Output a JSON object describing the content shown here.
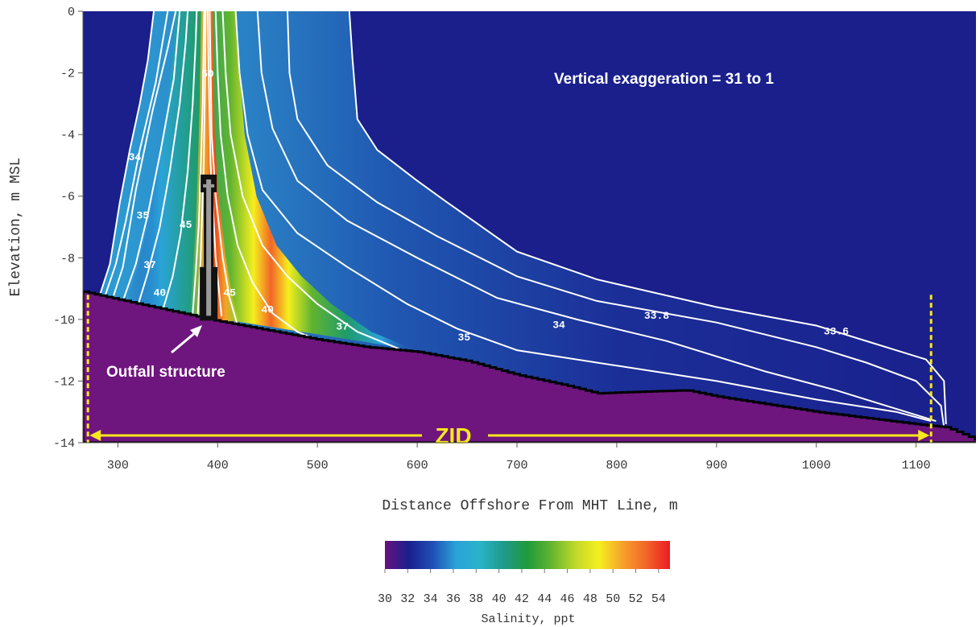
{
  "chart_data": {
    "type": "heatmap",
    "xlabel": "Distance Offshore From MHT Line, m",
    "ylabel": "Elevation, m MSL",
    "xlim": [
      265,
      1160
    ],
    "ylim": [
      -14,
      0
    ],
    "x_ticks": [
      300,
      400,
      500,
      600,
      700,
      800,
      900,
      1000,
      1100
    ],
    "y_ticks": [
      0,
      -2,
      -4,
      -6,
      -8,
      -10,
      -12,
      -14
    ],
    "grid": false,
    "colors": {
      "background": "#1a1f8c",
      "seabed": "#6f157e",
      "boundary": "#f6e81d",
      "contour": "#ffffff"
    },
    "annotations": {
      "exaggeration": "Vertical exaggeration = 31 to 1",
      "outfall": "Outfall structure",
      "zid": "ZID"
    },
    "zid_range": [
      270,
      1115
    ],
    "outfall_x": 391,
    "outfall_top": -5.3,
    "seabed_profile": [
      [
        265,
        -9.1
      ],
      [
        300,
        -9.35
      ],
      [
        350,
        -9.7
      ],
      [
        400,
        -10.05
      ],
      [
        450,
        -10.35
      ],
      [
        500,
        -10.65
      ],
      [
        550,
        -10.9
      ],
      [
        600,
        -11.05
      ],
      [
        650,
        -11.35
      ],
      [
        700,
        -11.8
      ],
      [
        750,
        -12.15
      ],
      [
        780,
        -12.4
      ],
      [
        820,
        -12.35
      ],
      [
        870,
        -12.3
      ],
      [
        900,
        -12.5
      ],
      [
        950,
        -12.75
      ],
      [
        1000,
        -13.0
      ],
      [
        1050,
        -13.2
      ],
      [
        1100,
        -13.4
      ],
      [
        1130,
        -13.5
      ],
      [
        1160,
        -13.9
      ]
    ],
    "contours": [
      {
        "level": "33.6",
        "label_at": [
          1020,
          -10.35
        ],
        "points": [
          [
            282,
            -9.2
          ],
          [
            292,
            -8.2
          ],
          [
            302,
            -6.2
          ],
          [
            312,
            -4.5
          ],
          [
            322,
            -3.0
          ],
          [
            330,
            -1.6
          ],
          [
            336,
            0
          ]
        ]
      },
      {
        "level": "33.6",
        "points": [
          [
            532,
            0
          ],
          [
            535,
            -1.5
          ],
          [
            540,
            -3.5
          ],
          [
            560,
            -4.5
          ],
          [
            600,
            -5.5
          ],
          [
            630,
            -6.2
          ],
          [
            700,
            -7.8
          ],
          [
            780,
            -8.7
          ],
          [
            900,
            -9.6
          ],
          [
            1000,
            -10.2
          ],
          [
            1060,
            -10.8
          ],
          [
            1110,
            -11.3
          ],
          [
            1128,
            -12.0
          ],
          [
            1130,
            -13.4
          ]
        ]
      },
      {
        "level": "33.8",
        "label_at": [
          840,
          -9.85
        ],
        "points": [
          [
            287,
            -9.25
          ],
          [
            298,
            -8.2
          ],
          [
            308,
            -6.8
          ],
          [
            322,
            -4.5
          ],
          [
            338,
            -2.3
          ],
          [
            350,
            0
          ]
        ]
      },
      {
        "level": "33.8",
        "points": [
          [
            470,
            0
          ],
          [
            472,
            -2
          ],
          [
            480,
            -3.5
          ],
          [
            510,
            -5
          ],
          [
            560,
            -6.2
          ],
          [
            620,
            -7.3
          ],
          [
            700,
            -8.6
          ],
          [
            780,
            -9.4
          ],
          [
            900,
            -10.1
          ],
          [
            1000,
            -10.9
          ],
          [
            1050,
            -11.4
          ],
          [
            1100,
            -12.0
          ],
          [
            1125,
            -12.8
          ],
          [
            1128,
            -13.5
          ]
        ]
      },
      {
        "level": "34",
        "label_at": [
          317,
          -4.7
        ],
        "points": [
          [
            295,
            -9.3
          ],
          [
            305,
            -8.3
          ],
          [
            318,
            -5.8
          ],
          [
            335,
            -3.2
          ],
          [
            350,
            -1.2
          ],
          [
            358,
            0
          ]
        ]
      },
      {
        "level": "34",
        "label_at": [
          742,
          -10.15
        ],
        "points": [
          [
            440,
            0
          ],
          [
            444,
            -2
          ],
          [
            455,
            -3.8
          ],
          [
            480,
            -5.5
          ],
          [
            530,
            -6.8
          ],
          [
            600,
            -8.0
          ],
          [
            680,
            -9.3
          ],
          [
            760,
            -10.0
          ],
          [
            850,
            -10.7
          ],
          [
            950,
            -11.7
          ],
          [
            1020,
            -12.3
          ],
          [
            1080,
            -12.9
          ],
          [
            1120,
            -13.3
          ]
        ]
      },
      {
        "level": "35",
        "label_at": [
          325,
          -6.6
        ],
        "points": [
          [
            305,
            -9.4
          ],
          [
            318,
            -8.2
          ],
          [
            330,
            -6.6
          ],
          [
            343,
            -4.5
          ],
          [
            356,
            -2.2
          ],
          [
            362,
            0
          ]
        ]
      },
      {
        "level": "35",
        "label_at": [
          647,
          -10.55
        ],
        "points": [
          [
            418,
            0
          ],
          [
            422,
            -2
          ],
          [
            430,
            -4
          ],
          [
            445,
            -5.8
          ],
          [
            480,
            -7.2
          ],
          [
            530,
            -8.3
          ],
          [
            590,
            -9.5
          ],
          [
            640,
            -10.3
          ],
          [
            700,
            -11.0
          ],
          [
            800,
            -11.5
          ],
          [
            900,
            -12.0
          ],
          [
            1000,
            -12.6
          ],
          [
            1080,
            -13.0
          ],
          [
            1115,
            -13.3
          ]
        ]
      },
      {
        "level": "37",
        "label_at": [
          332,
          -8.2
        ],
        "points": [
          [
            320,
            -9.55
          ],
          [
            330,
            -8.5
          ],
          [
            342,
            -7.0
          ],
          [
            352,
            -5.2
          ],
          [
            362,
            -3.0
          ],
          [
            368,
            -1.0
          ],
          [
            370,
            0
          ]
        ]
      },
      {
        "level": "37",
        "label_at": [
          525,
          -10.2
        ],
        "points": [
          [
            405,
            0
          ],
          [
            408,
            -2
          ],
          [
            413,
            -4
          ],
          [
            425,
            -6
          ],
          [
            445,
            -7.6
          ],
          [
            470,
            -8.6
          ],
          [
            500,
            -9.5
          ],
          [
            540,
            -10.4
          ],
          [
            585,
            -11.0
          ]
        ]
      },
      {
        "level": "40",
        "label_at": [
          342,
          -9.1
        ],
        "points": [
          [
            345,
            -9.7
          ],
          [
            355,
            -8.6
          ],
          [
            363,
            -7.2
          ],
          [
            370,
            -5.2
          ],
          [
            375,
            -3.0
          ],
          [
            378,
            -1.0
          ],
          [
            379,
            0
          ]
        ]
      },
      {
        "level": "40",
        "label_at": [
          450,
          -9.65
        ],
        "points": [
          [
            398,
            0
          ],
          [
            400,
            -2
          ],
          [
            403,
            -4
          ],
          [
            410,
            -6
          ],
          [
            420,
            -7.6
          ],
          [
            435,
            -8.8
          ],
          [
            455,
            -9.8
          ],
          [
            480,
            -10.4
          ],
          [
            510,
            -10.8
          ]
        ]
      },
      {
        "level": "45",
        "label_at": [
          368,
          -6.9
        ],
        "points": [
          [
            375,
            -9.8
          ],
          [
            378,
            -8.5
          ],
          [
            381,
            -7
          ],
          [
            383,
            -5.2
          ],
          [
            385,
            -3.0
          ],
          [
            386,
            -1.0
          ],
          [
            386.5,
            0
          ]
        ]
      },
      {
        "level": "45",
        "label_at": [
          412,
          -9.1
        ],
        "points": [
          [
            392,
            0
          ],
          [
            393,
            -2
          ],
          [
            394,
            -4
          ],
          [
            398,
            -6
          ],
          [
            405,
            -8
          ],
          [
            412,
            -9.3
          ],
          [
            420,
            -10.2
          ]
        ]
      },
      {
        "level": "50",
        "label_at": [
          390,
          -2.0
        ],
        "points": [
          [
            380,
            -9.9
          ],
          [
            383,
            -8
          ],
          [
            386,
            -5
          ],
          [
            387.5,
            -2
          ],
          [
            388,
            0
          ]
        ]
      },
      {
        "level": "50",
        "points": [
          [
            390,
            0
          ],
          [
            391,
            -2
          ],
          [
            393,
            -5
          ],
          [
            398,
            -8
          ],
          [
            404,
            -9.9
          ]
        ]
      }
    ],
    "colorbar": {
      "label": "Salinity, ppt",
      "ticks": [
        "30",
        "32",
        "34",
        "36",
        "38",
        "40",
        "42",
        "44",
        "46",
        "48",
        "50",
        "52",
        "54"
      ],
      "range": [
        30,
        55
      ],
      "colors": [
        "#67117f",
        "#1a1f8c",
        "#1f4fb4",
        "#2aa3d9",
        "#29b3c8",
        "#1f9a8a",
        "#1f9b3a",
        "#62b430",
        "#bfd82a",
        "#f5ef1e",
        "#f6a22a",
        "#f26528",
        "#ec1c24"
      ]
    }
  }
}
